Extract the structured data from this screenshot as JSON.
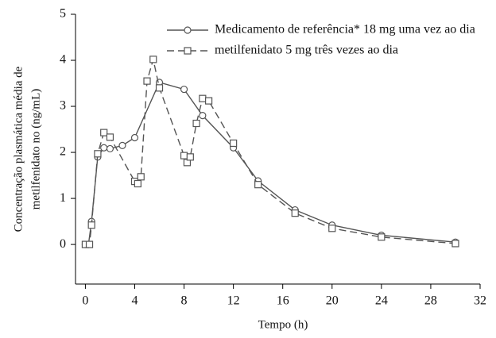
{
  "chart_data": {
    "type": "line",
    "xlabel": "Tempo (h)",
    "ylabel": [
      "Concentração plasmática média de",
      "metilfenidato no (ng/mL)"
    ],
    "xlim": [
      -0.8,
      32
    ],
    "xticks": [
      0,
      4,
      8,
      12,
      16,
      20,
      24,
      28,
      32
    ],
    "ylim": [
      -0.86,
      5
    ],
    "yticks": [
      0,
      1,
      2,
      3,
      4,
      5
    ],
    "legend": "upper right",
    "series": [
      {
        "name": "Medicamento de referência* 18 mg uma vez ao dia",
        "color": "#555555",
        "marker": "circle",
        "dash": "solid",
        "x": [
          0,
          0.25,
          0.5,
          1,
          1.5,
          2,
          3,
          4,
          6,
          8,
          9.5,
          12,
          14,
          17,
          20,
          24,
          30
        ],
        "values": [
          0,
          0,
          0.5,
          1.9,
          2.1,
          2.08,
          2.15,
          2.32,
          3.52,
          3.37,
          2.8,
          2.1,
          1.38,
          0.75,
          0.42,
          0.2,
          0.05
        ]
      },
      {
        "name": "metilfenidato 5 mg três vezes ao dia",
        "color": "#555555",
        "marker": "square",
        "dash": "dashed",
        "x": [
          0,
          0.33,
          0.5,
          1,
          1.5,
          2,
          4,
          4.25,
          4.5,
          5,
          5.5,
          6,
          8,
          8.25,
          8.5,
          9,
          9.5,
          10,
          12,
          14,
          17,
          20,
          24,
          30
        ],
        "values": [
          0,
          0,
          0.42,
          1.97,
          2.43,
          2.33,
          1.37,
          1.32,
          1.47,
          3.55,
          4.02,
          3.4,
          1.93,
          1.78,
          1.9,
          2.63,
          3.17,
          3.12,
          2.2,
          1.3,
          0.68,
          0.35,
          0.16,
          0.02
        ]
      }
    ]
  }
}
